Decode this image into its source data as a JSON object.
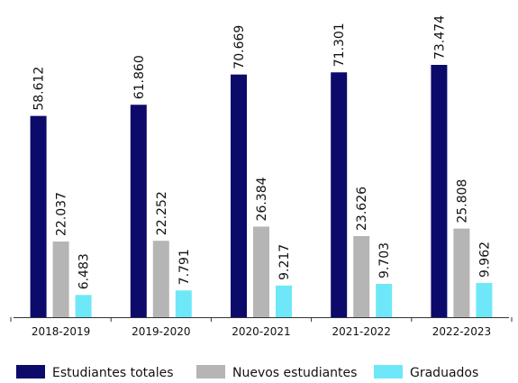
{
  "chart_data": {
    "type": "bar",
    "categories": [
      "2018-2019",
      "2019-2020",
      "2020-2021",
      "2021-2022",
      "2022-2023"
    ],
    "series": [
      {
        "name": "Estudiantes totales",
        "color": "#0c0a6b",
        "values": [
          58612,
          61860,
          70669,
          71301,
          73474
        ],
        "value_labels": [
          "58.612",
          "61.860",
          "70.669",
          "71.301",
          "73.474"
        ]
      },
      {
        "name": "Nuevos estudiantes",
        "color": "#b5b5b5",
        "values": [
          22037,
          22252,
          26384,
          23626,
          25808
        ],
        "value_labels": [
          "22.037",
          "22.252",
          "26.384",
          "23.626",
          "25.808"
        ]
      },
      {
        "name": "Graduados",
        "color": "#6ee8f8",
        "values": [
          6483,
          7791,
          9217,
          9703,
          9962
        ],
        "value_labels": [
          "6.483",
          "7.791",
          "9.217",
          "9.703",
          "9.962"
        ]
      }
    ],
    "legend": "bottom"
  }
}
